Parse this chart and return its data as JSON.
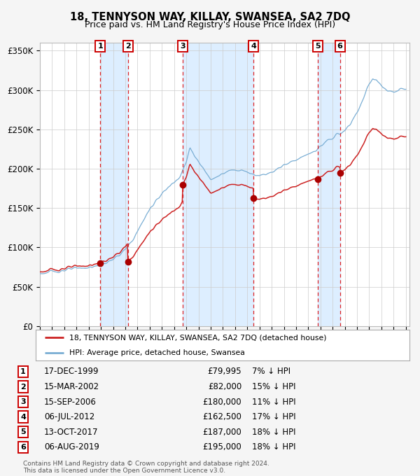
{
  "title": "18, TENNYSON WAY, KILLAY, SWANSEA, SA2 7DQ",
  "subtitle": "Price paid vs. HM Land Registry's House Price Index (HPI)",
  "ylim": [
    0,
    360000
  ],
  "yticks": [
    0,
    50000,
    100000,
    150000,
    200000,
    250000,
    300000,
    350000
  ],
  "ytick_labels": [
    "£0",
    "£50K",
    "£100K",
    "£150K",
    "£200K",
    "£250K",
    "£300K",
    "£350K"
  ],
  "hpi_color": "#7aaed4",
  "price_color": "#cc2222",
  "dot_color": "#aa0000",
  "sale_dates_num": [
    1999.96,
    2002.21,
    2006.71,
    2012.51,
    2017.79,
    2019.6
  ],
  "sale_prices": [
    79995,
    82000,
    180000,
    162500,
    187000,
    195000
  ],
  "sale_labels": [
    "1",
    "2",
    "3",
    "4",
    "5",
    "6"
  ],
  "sale_info": [
    [
      "17-DEC-1999",
      "£79,995",
      "7% ↓ HPI"
    ],
    [
      "15-MAR-2002",
      "£82,000",
      "15% ↓ HPI"
    ],
    [
      "15-SEP-2006",
      "£180,000",
      "11% ↓ HPI"
    ],
    [
      "06-JUL-2012",
      "£162,500",
      "17% ↓ HPI"
    ],
    [
      "13-OCT-2017",
      "£187,000",
      "18% ↓ HPI"
    ],
    [
      "06-AUG-2019",
      "£195,000",
      "18% ↓ HPI"
    ]
  ],
  "legend_house_label": "18, TENNYSON WAY, KILLAY, SWANSEA, SA2 7DQ (detached house)",
  "legend_hpi_label": "HPI: Average price, detached house, Swansea",
  "footnote1": "Contains HM Land Registry data © Crown copyright and database right 2024.",
  "footnote2": "This data is licensed under the Open Government Licence v3.0.",
  "bg_color": "#f5f5f5",
  "plot_bg": "#ffffff",
  "highlight_color": "#ddeeff",
  "hpi_anchors_y": [
    1995.0,
    1995.5,
    1996.0,
    1996.5,
    1997.0,
    1997.5,
    1998.0,
    1998.5,
    1999.0,
    1999.5,
    2000.0,
    2000.5,
    2001.0,
    2001.5,
    2002.0,
    2002.5,
    2003.0,
    2003.5,
    2004.0,
    2004.5,
    2005.0,
    2005.5,
    2006.0,
    2006.5,
    2007.0,
    2007.3,
    2007.6,
    2008.0,
    2008.5,
    2009.0,
    2009.5,
    2010.0,
    2010.5,
    2011.0,
    2011.5,
    2012.0,
    2012.5,
    2013.0,
    2013.5,
    2014.0,
    2014.5,
    2015.0,
    2015.5,
    2016.0,
    2016.5,
    2017.0,
    2017.5,
    2018.0,
    2018.5,
    2019.0,
    2019.5,
    2020.0,
    2020.5,
    2021.0,
    2021.5,
    2022.0,
    2022.3,
    2022.6,
    2023.0,
    2023.5,
    2024.0,
    2024.5,
    2025.0
  ],
  "hpi_anchors_v": [
    67000,
    67500,
    69000,
    70000,
    71000,
    72000,
    73000,
    74000,
    74500,
    75500,
    78000,
    81000,
    85000,
    90000,
    97000,
    107000,
    120000,
    135000,
    148000,
    160000,
    168000,
    176000,
    183000,
    191000,
    208000,
    228000,
    218000,
    208000,
    198000,
    188000,
    190000,
    193000,
    197000,
    199000,
    198000,
    196000,
    193000,
    192000,
    193000,
    196000,
    200000,
    205000,
    208000,
    212000,
    215000,
    218000,
    222000,
    228000,
    234000,
    240000,
    244000,
    248000,
    258000,
    272000,
    288000,
    308000,
    315000,
    313000,
    305000,
    298000,
    297000,
    300000,
    302000
  ]
}
